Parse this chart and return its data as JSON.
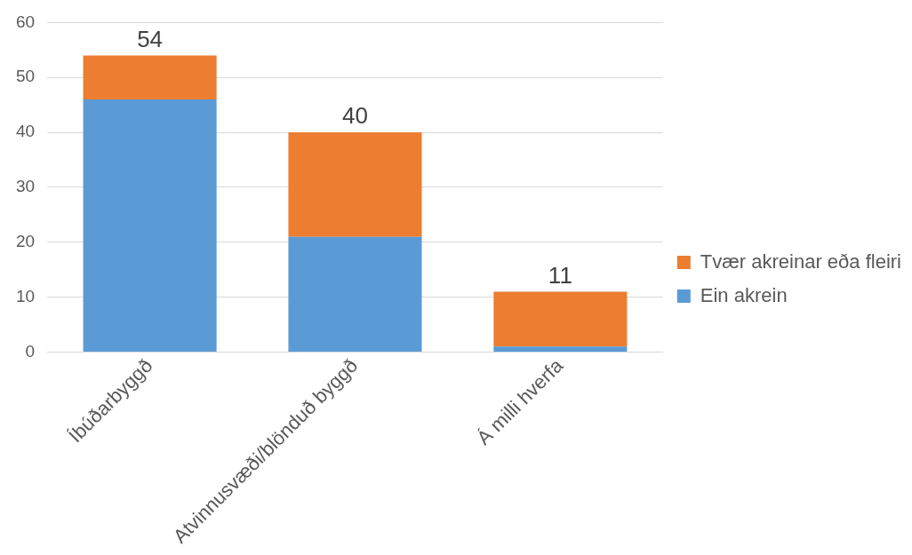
{
  "chart_data": {
    "type": "bar",
    "stacked": true,
    "categories": [
      "Íbúðarbyggð",
      "Atvinnusvæði/blönduð byggð",
      "Á milli hverfa"
    ],
    "series": [
      {
        "name": "Ein akrein",
        "color": "#5b9bd5",
        "values": [
          46,
          21,
          1
        ]
      },
      {
        "name": "Tvær akreinar eða fleiri",
        "color": "#ed7d31",
        "values": [
          8,
          19,
          10
        ]
      }
    ],
    "totals": [
      "54",
      "40",
      "11"
    ],
    "ylim": [
      0,
      60
    ],
    "yticks": [
      0,
      10,
      20,
      30,
      40,
      50,
      60
    ],
    "grid": "y",
    "legend": "right"
  }
}
